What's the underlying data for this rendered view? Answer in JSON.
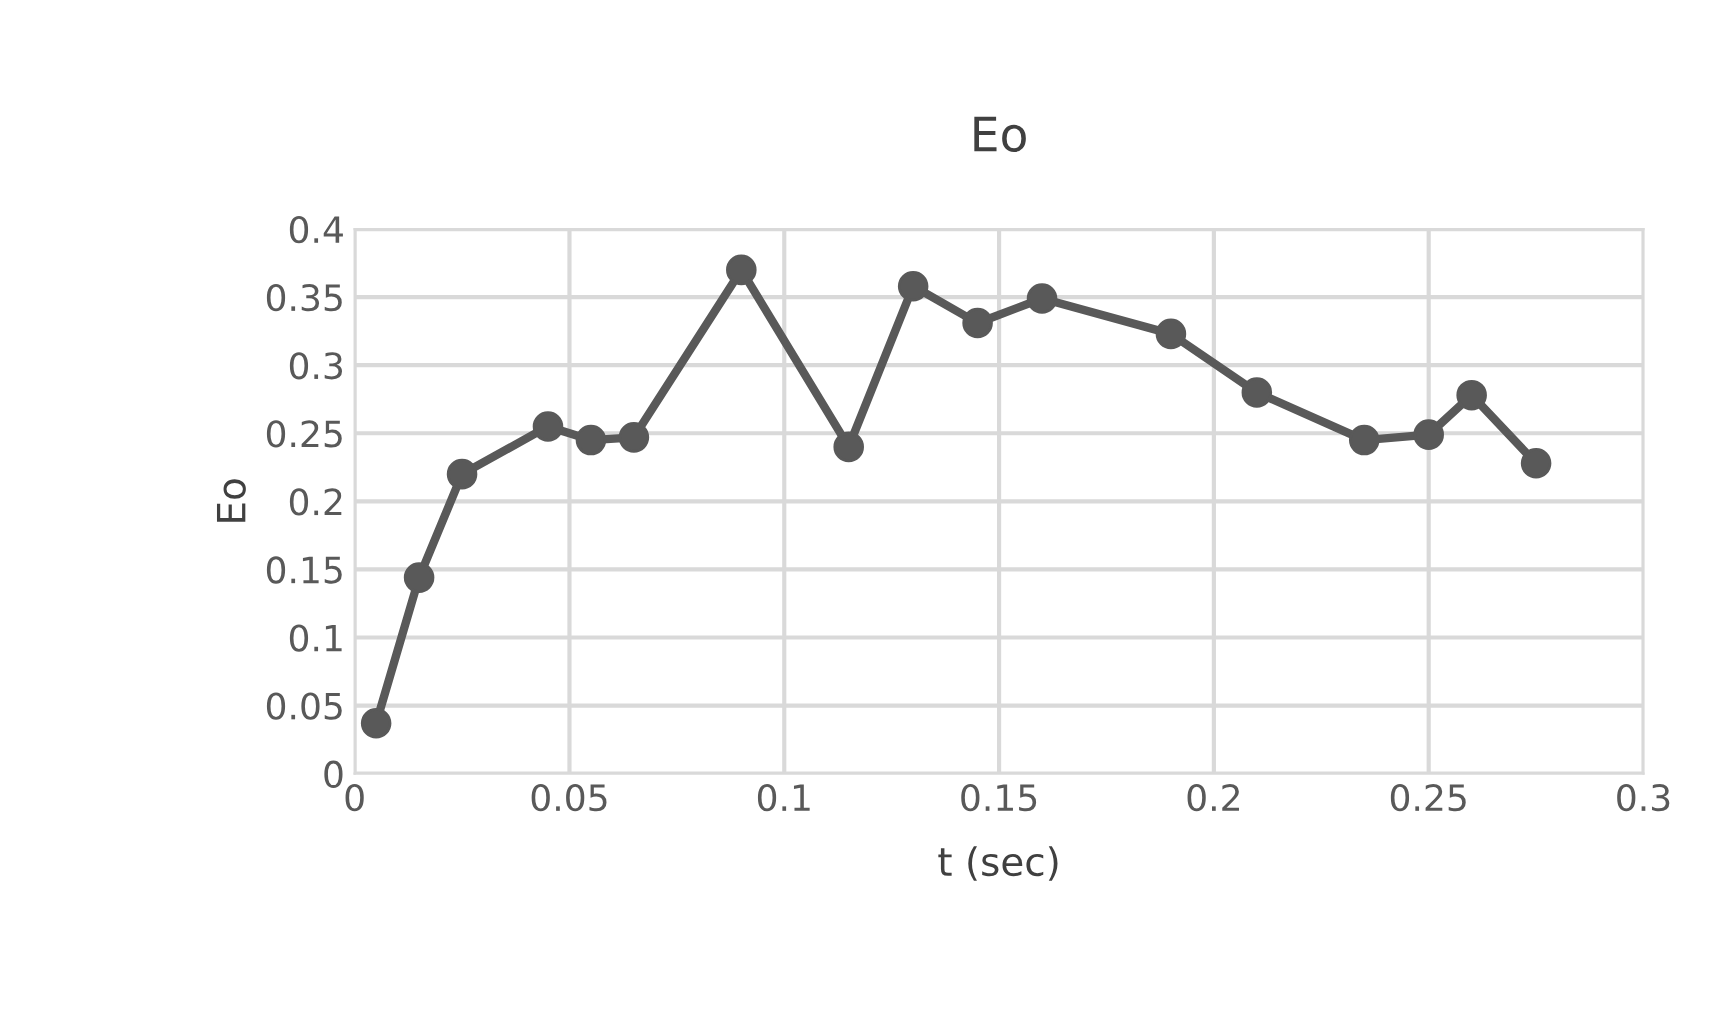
{
  "chart_data": {
    "type": "line",
    "title": "Eo",
    "xlabel": "t (sec)",
    "ylabel": "Eo",
    "series": [
      {
        "color": "#595959",
        "x": [
          0.005,
          0.015,
          0.025,
          0.045,
          0.055,
          0.065,
          0.09,
          0.115,
          0.13,
          0.145,
          0.16,
          0.19,
          0.21,
          0.235,
          0.25,
          0.26,
          0.275
        ],
        "values": [
          0.037,
          0.144,
          0.22,
          0.255,
          0.245,
          0.247,
          0.37,
          0.24,
          0.358,
          0.331,
          0.349,
          0.323,
          0.28,
          0.245,
          0.249,
          0.278,
          0.228
        ]
      }
    ],
    "xlim": [
      0,
      0.3
    ],
    "xticks": [
      {
        "value": 0,
        "label": "0"
      },
      0.05,
      0.1,
      0.15,
      0.2,
      0.25,
      0.3
    ],
    "ylim": [
      0,
      0.4
    ],
    "yticks": [
      {
        "value": 0,
        "label": "0"
      },
      0.05,
      0.1,
      0.15,
      0.2,
      0.25,
      0.3,
      0.35,
      0.4
    ],
    "grid": true,
    "marker": "circle",
    "line_style": "solid"
  }
}
